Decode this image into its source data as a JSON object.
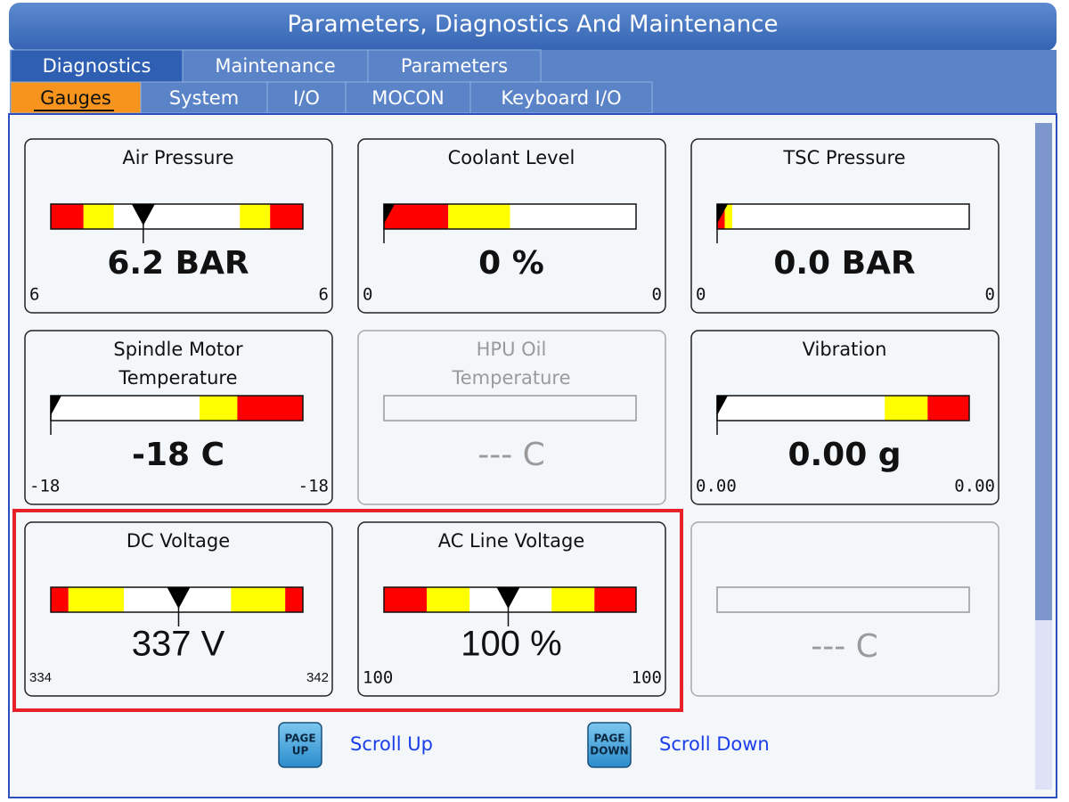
{
  "header": {
    "title": "Parameters, Diagnostics And Maintenance"
  },
  "tabs": [
    "Diagnostics",
    "Maintenance",
    "Parameters"
  ],
  "subtabs": [
    "Gauges",
    "System",
    "I/O",
    "MOCON",
    "Keyboard I/O"
  ],
  "gauges": [
    {
      "label": [
        "Air Pressure"
      ],
      "value": "6.2 BAR",
      "min": "6",
      "max": "6"
    },
    {
      "label": [
        "Coolant Level"
      ],
      "value": "0  %",
      "min": "0",
      "max": "0"
    },
    {
      "label": [
        "TSC Pressure"
      ],
      "value": "0.0 BAR",
      "min": "0",
      "max": "0"
    },
    {
      "label": [
        "Spindle Motor",
        "Temperature"
      ],
      "value": "-18 C",
      "min": "-18",
      "max": "-18"
    },
    {
      "label": [
        "HPU Oil",
        "Temperature"
      ],
      "value": "--- C"
    },
    {
      "label": [
        "Vibration"
      ],
      "value": "0.00 g",
      "min": "0.00",
      "max": "0.00"
    },
    {
      "label": [
        "DC Voltage"
      ],
      "value": "337 V",
      "min": "334",
      "max": "342"
    },
    {
      "label": [
        "AC Line Voltage"
      ],
      "value": "100 %",
      "min": "100",
      "max": "100"
    },
    {
      "value": "--- C"
    }
  ],
  "footer": {
    "scroll_up": {
      "key": [
        "PAGE",
        "UP"
      ],
      "label": "Scroll Up"
    },
    "scroll_down": {
      "key": [
        "PAGE",
        "DOWN"
      ],
      "label": "Scroll Down"
    }
  }
}
